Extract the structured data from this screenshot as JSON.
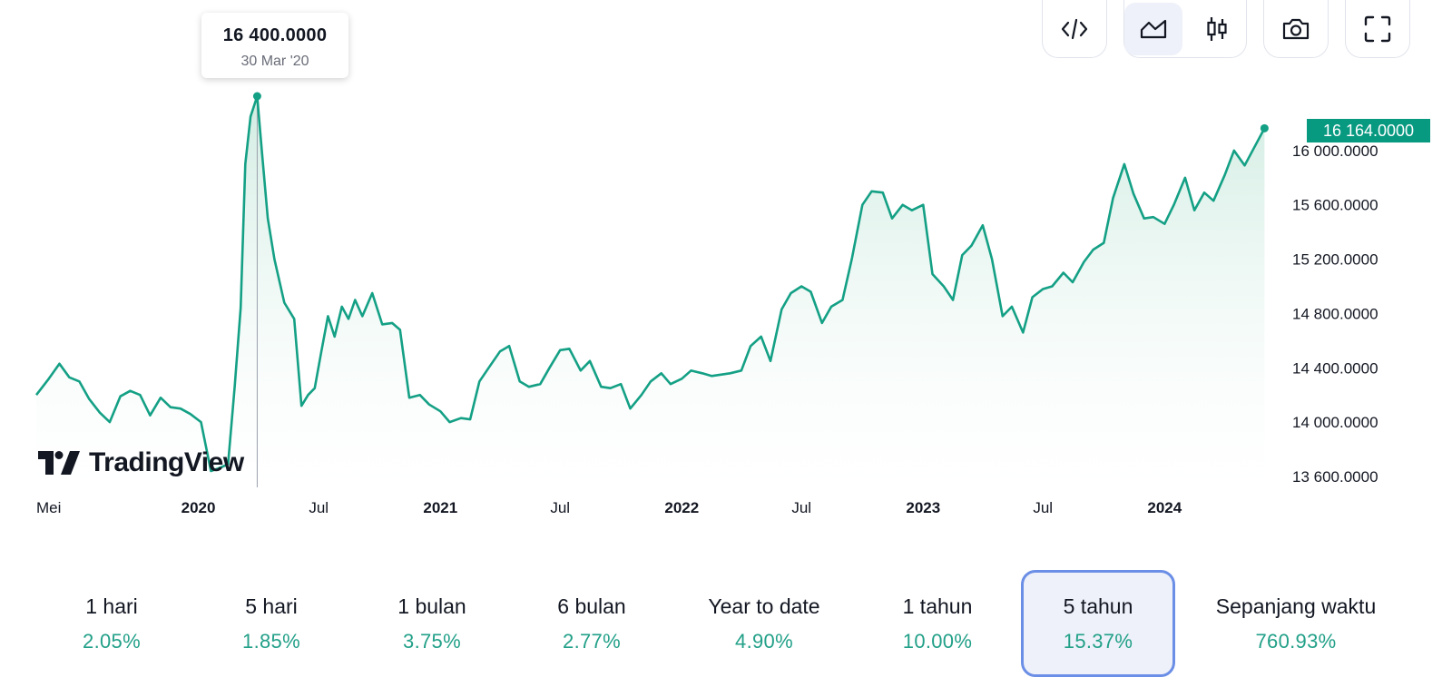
{
  "toolbar": {
    "buttons": [
      {
        "name": "embed-code-icon"
      },
      {
        "name": "area-chart-icon",
        "active": true
      },
      {
        "name": "candlestick-chart-icon"
      },
      {
        "name": "camera-icon"
      },
      {
        "name": "fullscreen-icon"
      }
    ]
  },
  "tooltip": {
    "value": "16 400.0000",
    "date": "30 Mar '20"
  },
  "logo_text": "TradingView",
  "last_price_label": "16 164.0000",
  "colors": {
    "line": "#14a085",
    "fill_top": "#c9e9dd",
    "fill_bottom": "#ffffff",
    "last_price_bg": "#089981"
  },
  "chart_data": {
    "type": "area",
    "y_ticks": [
      13600,
      14000,
      14400,
      14800,
      15200,
      15600,
      16000
    ],
    "y_tick_labels": [
      "13 600.0000",
      "14 000.0000",
      "14 400.0000",
      "14 800.0000",
      "15 200.0000",
      "15 600.0000",
      "16 000.0000"
    ],
    "ylim": [
      13600,
      16400
    ],
    "xlim": [
      "2019-05-01",
      "2024-06-05"
    ],
    "x_ticks": [
      {
        "date": "2019-05-01",
        "label": "Mei",
        "bold": false
      },
      {
        "date": "2020-01-01",
        "label": "2020",
        "bold": true
      },
      {
        "date": "2020-07-01",
        "label": "Jul",
        "bold": false
      },
      {
        "date": "2021-01-01",
        "label": "2021",
        "bold": true
      },
      {
        "date": "2021-07-01",
        "label": "Jul",
        "bold": false
      },
      {
        "date": "2022-01-01",
        "label": "2022",
        "bold": true
      },
      {
        "date": "2022-07-01",
        "label": "Jul",
        "bold": false
      },
      {
        "date": "2023-01-01",
        "label": "2023",
        "bold": true
      },
      {
        "date": "2023-07-01",
        "label": "Jul",
        "bold": false
      },
      {
        "date": "2024-01-01",
        "label": "2024",
        "bold": true
      }
    ],
    "grid": false,
    "hover": {
      "date": "2020-03-30",
      "value": 16400
    },
    "last": {
      "date": "2024-05-31",
      "value": 16164
    },
    "series": [
      {
        "points": [
          [
            "2019-05-01",
            14200
          ],
          [
            "2019-05-20",
            14320
          ],
          [
            "2019-06-05",
            14430
          ],
          [
            "2019-06-20",
            14330
          ],
          [
            "2019-07-05",
            14300
          ],
          [
            "2019-07-20",
            14170
          ],
          [
            "2019-08-05",
            14070
          ],
          [
            "2019-08-20",
            14000
          ],
          [
            "2019-09-05",
            14190
          ],
          [
            "2019-09-20",
            14230
          ],
          [
            "2019-10-05",
            14200
          ],
          [
            "2019-10-20",
            14050
          ],
          [
            "2019-11-05",
            14180
          ],
          [
            "2019-11-20",
            14110
          ],
          [
            "2019-12-05",
            14100
          ],
          [
            "2019-12-20",
            14060
          ],
          [
            "2020-01-05",
            14000
          ],
          [
            "2020-01-20",
            13640
          ],
          [
            "2020-02-01",
            13660
          ],
          [
            "2020-02-15",
            13690
          ],
          [
            "2020-02-25",
            14260
          ],
          [
            "2020-03-05",
            14840
          ],
          [
            "2020-03-12",
            15900
          ],
          [
            "2020-03-20",
            16250
          ],
          [
            "2020-03-30",
            16400
          ],
          [
            "2020-04-06",
            16000
          ],
          [
            "2020-04-15",
            15500
          ],
          [
            "2020-04-25",
            15200
          ],
          [
            "2020-05-10",
            14880
          ],
          [
            "2020-05-25",
            14760
          ],
          [
            "2020-06-05",
            14120
          ],
          [
            "2020-06-15",
            14200
          ],
          [
            "2020-06-25",
            14250
          ],
          [
            "2020-07-05",
            14520
          ],
          [
            "2020-07-15",
            14780
          ],
          [
            "2020-07-25",
            14630
          ],
          [
            "2020-08-05",
            14850
          ],
          [
            "2020-08-15",
            14760
          ],
          [
            "2020-08-25",
            14900
          ],
          [
            "2020-09-05",
            14780
          ],
          [
            "2020-09-20",
            14950
          ],
          [
            "2020-10-05",
            14720
          ],
          [
            "2020-10-20",
            14730
          ],
          [
            "2020-11-01",
            14680
          ],
          [
            "2020-11-15",
            14180
          ],
          [
            "2020-12-01",
            14200
          ],
          [
            "2020-12-15",
            14130
          ],
          [
            "2021-01-01",
            14080
          ],
          [
            "2021-01-15",
            14000
          ],
          [
            "2021-02-01",
            14030
          ],
          [
            "2021-02-15",
            14020
          ],
          [
            "2021-03-01",
            14300
          ],
          [
            "2021-03-15",
            14400
          ],
          [
            "2021-04-01",
            14520
          ],
          [
            "2021-04-15",
            14560
          ],
          [
            "2021-05-01",
            14300
          ],
          [
            "2021-05-15",
            14260
          ],
          [
            "2021-06-01",
            14280
          ],
          [
            "2021-06-15",
            14400
          ],
          [
            "2021-07-01",
            14530
          ],
          [
            "2021-07-15",
            14540
          ],
          [
            "2021-08-01",
            14380
          ],
          [
            "2021-08-15",
            14450
          ],
          [
            "2021-09-01",
            14260
          ],
          [
            "2021-09-15",
            14250
          ],
          [
            "2021-10-01",
            14280
          ],
          [
            "2021-10-15",
            14100
          ],
          [
            "2021-11-01",
            14200
          ],
          [
            "2021-11-15",
            14300
          ],
          [
            "2021-12-01",
            14360
          ],
          [
            "2021-12-15",
            14280
          ],
          [
            "2022-01-01",
            14320
          ],
          [
            "2022-01-15",
            14380
          ],
          [
            "2022-02-01",
            14360
          ],
          [
            "2022-02-15",
            14340
          ],
          [
            "2022-03-01",
            14350
          ],
          [
            "2022-03-15",
            14360
          ],
          [
            "2022-04-01",
            14380
          ],
          [
            "2022-04-15",
            14560
          ],
          [
            "2022-05-01",
            14630
          ],
          [
            "2022-05-15",
            14450
          ],
          [
            "2022-06-01",
            14830
          ],
          [
            "2022-06-15",
            14950
          ],
          [
            "2022-07-01",
            15000
          ],
          [
            "2022-07-15",
            14960
          ],
          [
            "2022-08-01",
            14730
          ],
          [
            "2022-08-15",
            14850
          ],
          [
            "2022-09-01",
            14900
          ],
          [
            "2022-09-15",
            15200
          ],
          [
            "2022-10-01",
            15600
          ],
          [
            "2022-10-15",
            15700
          ],
          [
            "2022-11-01",
            15690
          ],
          [
            "2022-11-15",
            15500
          ],
          [
            "2022-12-01",
            15600
          ],
          [
            "2022-12-15",
            15560
          ],
          [
            "2023-01-01",
            15600
          ],
          [
            "2023-01-15",
            15090
          ],
          [
            "2023-02-01",
            15000
          ],
          [
            "2023-02-15",
            14900
          ],
          [
            "2023-03-01",
            15230
          ],
          [
            "2023-03-15",
            15300
          ],
          [
            "2023-04-01",
            15450
          ],
          [
            "2023-04-15",
            15200
          ],
          [
            "2023-05-01",
            14780
          ],
          [
            "2023-05-15",
            14850
          ],
          [
            "2023-06-01",
            14660
          ],
          [
            "2023-06-15",
            14920
          ],
          [
            "2023-07-01",
            14980
          ],
          [
            "2023-07-15",
            15000
          ],
          [
            "2023-08-01",
            15100
          ],
          [
            "2023-08-15",
            15030
          ],
          [
            "2023-09-01",
            15180
          ],
          [
            "2023-09-15",
            15270
          ],
          [
            "2023-10-01",
            15320
          ],
          [
            "2023-10-15",
            15650
          ],
          [
            "2023-11-01",
            15900
          ],
          [
            "2023-11-15",
            15680
          ],
          [
            "2023-12-01",
            15500
          ],
          [
            "2023-12-15",
            15510
          ],
          [
            "2024-01-01",
            15460
          ],
          [
            "2024-01-15",
            15600
          ],
          [
            "2024-02-01",
            15800
          ],
          [
            "2024-02-15",
            15560
          ],
          [
            "2024-03-01",
            15690
          ],
          [
            "2024-03-15",
            15630
          ],
          [
            "2024-04-01",
            15820
          ],
          [
            "2024-04-15",
            16000
          ],
          [
            "2024-05-01",
            15890
          ],
          [
            "2024-05-31",
            16164
          ]
        ]
      }
    ]
  },
  "periods": [
    {
      "label": "1 hari",
      "value": "2.05%"
    },
    {
      "label": "5 hari",
      "value": "1.85%"
    },
    {
      "label": "1 bulan",
      "value": "3.75%"
    },
    {
      "label": "6 bulan",
      "value": "2.77%"
    },
    {
      "label": "Year to date",
      "value": "4.90%"
    },
    {
      "label": "1 tahun",
      "value": "10.00%"
    },
    {
      "label": "5 tahun",
      "value": "15.37%",
      "active": true
    },
    {
      "label": "Sepanjang waktu",
      "value": "760.93%"
    }
  ]
}
